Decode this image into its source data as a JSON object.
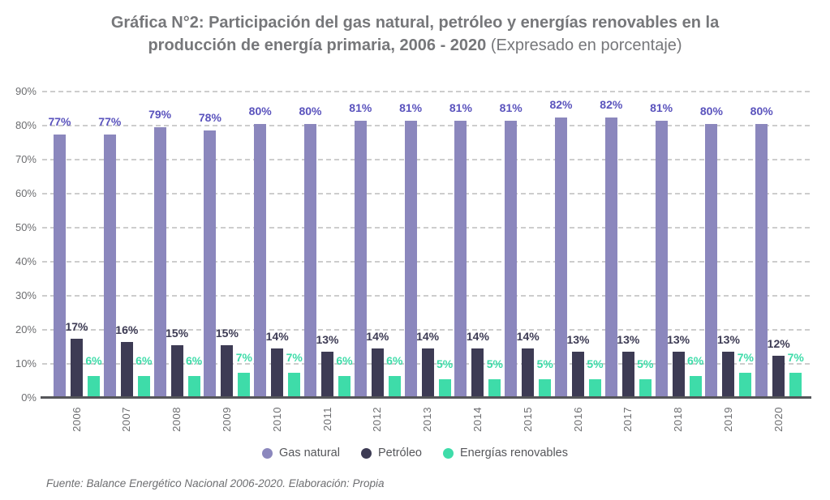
{
  "title": {
    "bold_line1": "Gráfica N°2: Participación del gas natural, petróleo y energías renovables en la",
    "bold_line2": "producción de energía primaria, 2006 - 2020",
    "regular_suffix": " (Expresado en porcentaje)"
  },
  "footer": "Fuente: Balance Energético Nacional 2006-2020. Elaboración: Propia",
  "chart_data": {
    "type": "bar",
    "title": "Gráfica N°2: Participación del gas natural, petróleo y energías renovables en la producción de energía primaria, 2006 - 2020 (Expresado en porcentaje)",
    "categories": [
      "2006",
      "2007",
      "2008",
      "2009",
      "2010",
      "2011",
      "2012",
      "2013",
      "2014",
      "2015",
      "2016",
      "2017",
      "2018",
      "2019",
      "2020"
    ],
    "series": [
      {
        "name": "Gas natural",
        "color": "#8B87BD",
        "label_color": "#5A53BD",
        "values": [
          77,
          77,
          79,
          78,
          80,
          80,
          81,
          81,
          81,
          81,
          82,
          82,
          81,
          80,
          80
        ]
      },
      {
        "name": "Petróleo",
        "color": "#3D3B54",
        "label_color": "#3D3B54",
        "values": [
          17,
          16,
          15,
          15,
          14,
          13,
          14,
          14,
          14,
          14,
          13,
          13,
          13,
          13,
          12
        ]
      },
      {
        "name": "Energías renovables",
        "color": "#3EDCA9",
        "label_color": "#3EDCA9",
        "values": [
          6,
          6,
          6,
          7,
          7,
          6,
          6,
          5,
          5,
          5,
          5,
          5,
          6,
          7,
          7
        ]
      }
    ],
    "value_suffix": "%",
    "y_axis": {
      "min": 0,
      "max": 90,
      "step": 10,
      "tick_labels": [
        "0%",
        "10%",
        "20%",
        "30%",
        "40%",
        "50%",
        "60%",
        "70%",
        "80%",
        "90%"
      ]
    },
    "grid": "horizontal-dashed",
    "legend_position": "bottom"
  },
  "colors": {
    "title_text": "#76777A",
    "axis_text": "#6D6E71",
    "gridline": "#CDCDCD",
    "axis_line": "#55565A",
    "legend_text": "#55565A",
    "footer_text": "#6D6E71",
    "background": "#FFFFFF"
  }
}
